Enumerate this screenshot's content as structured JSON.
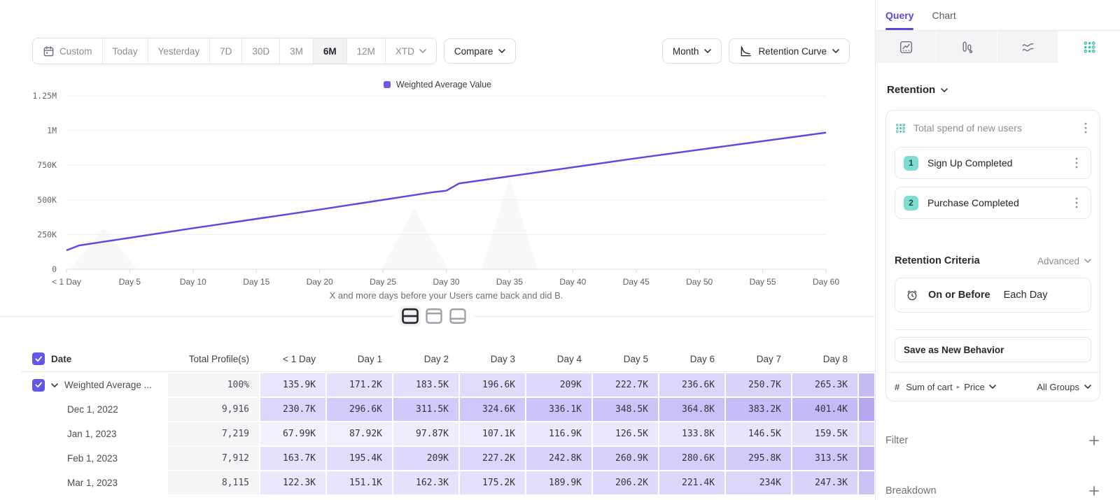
{
  "toolbar": {
    "ranges": [
      {
        "label": "Custom",
        "icon": "calendar-icon"
      },
      {
        "label": "Today"
      },
      {
        "label": "Yesterday"
      },
      {
        "label": "7D"
      },
      {
        "label": "30D"
      },
      {
        "label": "3M"
      },
      {
        "label": "6M",
        "selected": true
      },
      {
        "label": "12M"
      },
      {
        "label": "XTD",
        "chevron": true
      }
    ],
    "compare_label": "Compare",
    "granularity_label": "Month",
    "chart_type_label": "Retention Curve"
  },
  "chart_data": {
    "type": "line",
    "legend": [
      {
        "label": "Weighted Average Value",
        "color": "#6D59EA"
      }
    ],
    "line_color": "#5B49E6",
    "caption": "X and more days before your Users came back and did B.",
    "xlim": [
      0,
      60
    ],
    "ylim": [
      0,
      1250000
    ],
    "grid": true,
    "x_ticks": [
      {
        "day": 0,
        "label": "< 1 Day"
      },
      {
        "day": 5,
        "label": "Day 5"
      },
      {
        "day": 10,
        "label": "Day 10"
      },
      {
        "day": 15,
        "label": "Day 15"
      },
      {
        "day": 20,
        "label": "Day 20"
      },
      {
        "day": 25,
        "label": "Day 25"
      },
      {
        "day": 30,
        "label": "Day 30"
      },
      {
        "day": 35,
        "label": "Day 35"
      },
      {
        "day": 40,
        "label": "Day 40"
      },
      {
        "day": 45,
        "label": "Day 45"
      },
      {
        "day": 50,
        "label": "Day 50"
      },
      {
        "day": 55,
        "label": "Day 55"
      },
      {
        "day": 60,
        "label": "Day 60"
      }
    ],
    "y_ticks": [
      {
        "value": 0,
        "label": "0"
      },
      {
        "value": 250000,
        "label": "250K"
      },
      {
        "value": 500000,
        "label": "500K"
      },
      {
        "value": 750000,
        "label": "750K"
      },
      {
        "value": 1000000,
        "label": "1M"
      },
      {
        "value": 1250000,
        "label": "1.25M"
      }
    ],
    "series": [
      {
        "name": "Weighted Average Value",
        "points": [
          [
            0,
            135900
          ],
          [
            1,
            171200
          ],
          [
            10,
            296000
          ],
          [
            20,
            430000
          ],
          [
            29,
            556000
          ],
          [
            30,
            566000
          ],
          [
            31,
            618000
          ],
          [
            45,
            800000
          ],
          [
            60,
            985000
          ]
        ]
      }
    ]
  },
  "view_toggle": {
    "options": [
      "split-view",
      "chart-only",
      "table-only"
    ],
    "selected": "split-view"
  },
  "table": {
    "select_all_checked": true,
    "header": {
      "date": "Date",
      "profiles": "Total Profile(s)",
      "days": [
        "< 1 Day",
        "Day 1",
        "Day 2",
        "Day 3",
        "Day 4",
        "Day 5",
        "Day 6",
        "Day 7",
        "Day 8"
      ]
    },
    "cell_base_color": "#7962EE",
    "rows": [
      {
        "label": "Weighted Average ...",
        "type": "summary",
        "checked": true,
        "profiles": "100%",
        "values": [
          "135.9K",
          "171.2K",
          "183.5K",
          "196.6K",
          "209K",
          "222.7K",
          "236.6K",
          "250.7K",
          "265.3K"
        ],
        "overflow_color": "#C6BAF3"
      },
      {
        "label": "Dec 1, 2022",
        "type": "date",
        "profiles": "9,916",
        "values": [
          "230.7K",
          "296.6K",
          "311.5K",
          "324.6K",
          "336.1K",
          "348.5K",
          "364.8K",
          "383.2K",
          "401.4K"
        ],
        "overflow_color": "#B7A6F0"
      },
      {
        "label": "Jan 1, 2023",
        "type": "date",
        "profiles": "7,219",
        "values": [
          "67.99K",
          "87.92K",
          "97.87K",
          "107.1K",
          "116.9K",
          "126.5K",
          "133.8K",
          "146.5K",
          "159.5K"
        ],
        "overflow_color": "#DDD6F8"
      },
      {
        "label": "Feb 1, 2023",
        "type": "date",
        "profiles": "7,912",
        "values": [
          "163.7K",
          "195.4K",
          "209K",
          "227.2K",
          "242.8K",
          "260.9K",
          "280.6K",
          "295.8K",
          "313.5K"
        ],
        "overflow_color": "#C3B5F2"
      },
      {
        "label": "Mar 1, 2023",
        "type": "date",
        "profiles": "8,115",
        "values": [
          "122.3K",
          "151.1K",
          "162.3K",
          "175.2K",
          "189.9K",
          "206.2K",
          "221.4K",
          "234K",
          "247.3K"
        ],
        "overflow_color": "#CCC1F4"
      }
    ]
  },
  "panel": {
    "tabs": [
      {
        "label": "Query"
      },
      {
        "label": "Chart"
      }
    ],
    "accent_teal": "#3EBDB2",
    "section_label": "Retention",
    "behavior": {
      "title": "Total spend of new users",
      "steps": [
        {
          "index": "1",
          "label": "Sign Up Completed"
        },
        {
          "index": "2",
          "label": "Purchase Completed"
        }
      ],
      "criteria_label": "Retention Criteria",
      "criteria_mode": "Advanced",
      "criteria_condition": "On or Before",
      "criteria_period": "Each Day",
      "save_label": "Save as New Behavior",
      "measure_prefix": "#",
      "measure_label": "Sum of cart",
      "measure_property": "Price",
      "groups_label": "All Groups"
    },
    "filter_label": "Filter",
    "breakdown_label": "Breakdown"
  }
}
